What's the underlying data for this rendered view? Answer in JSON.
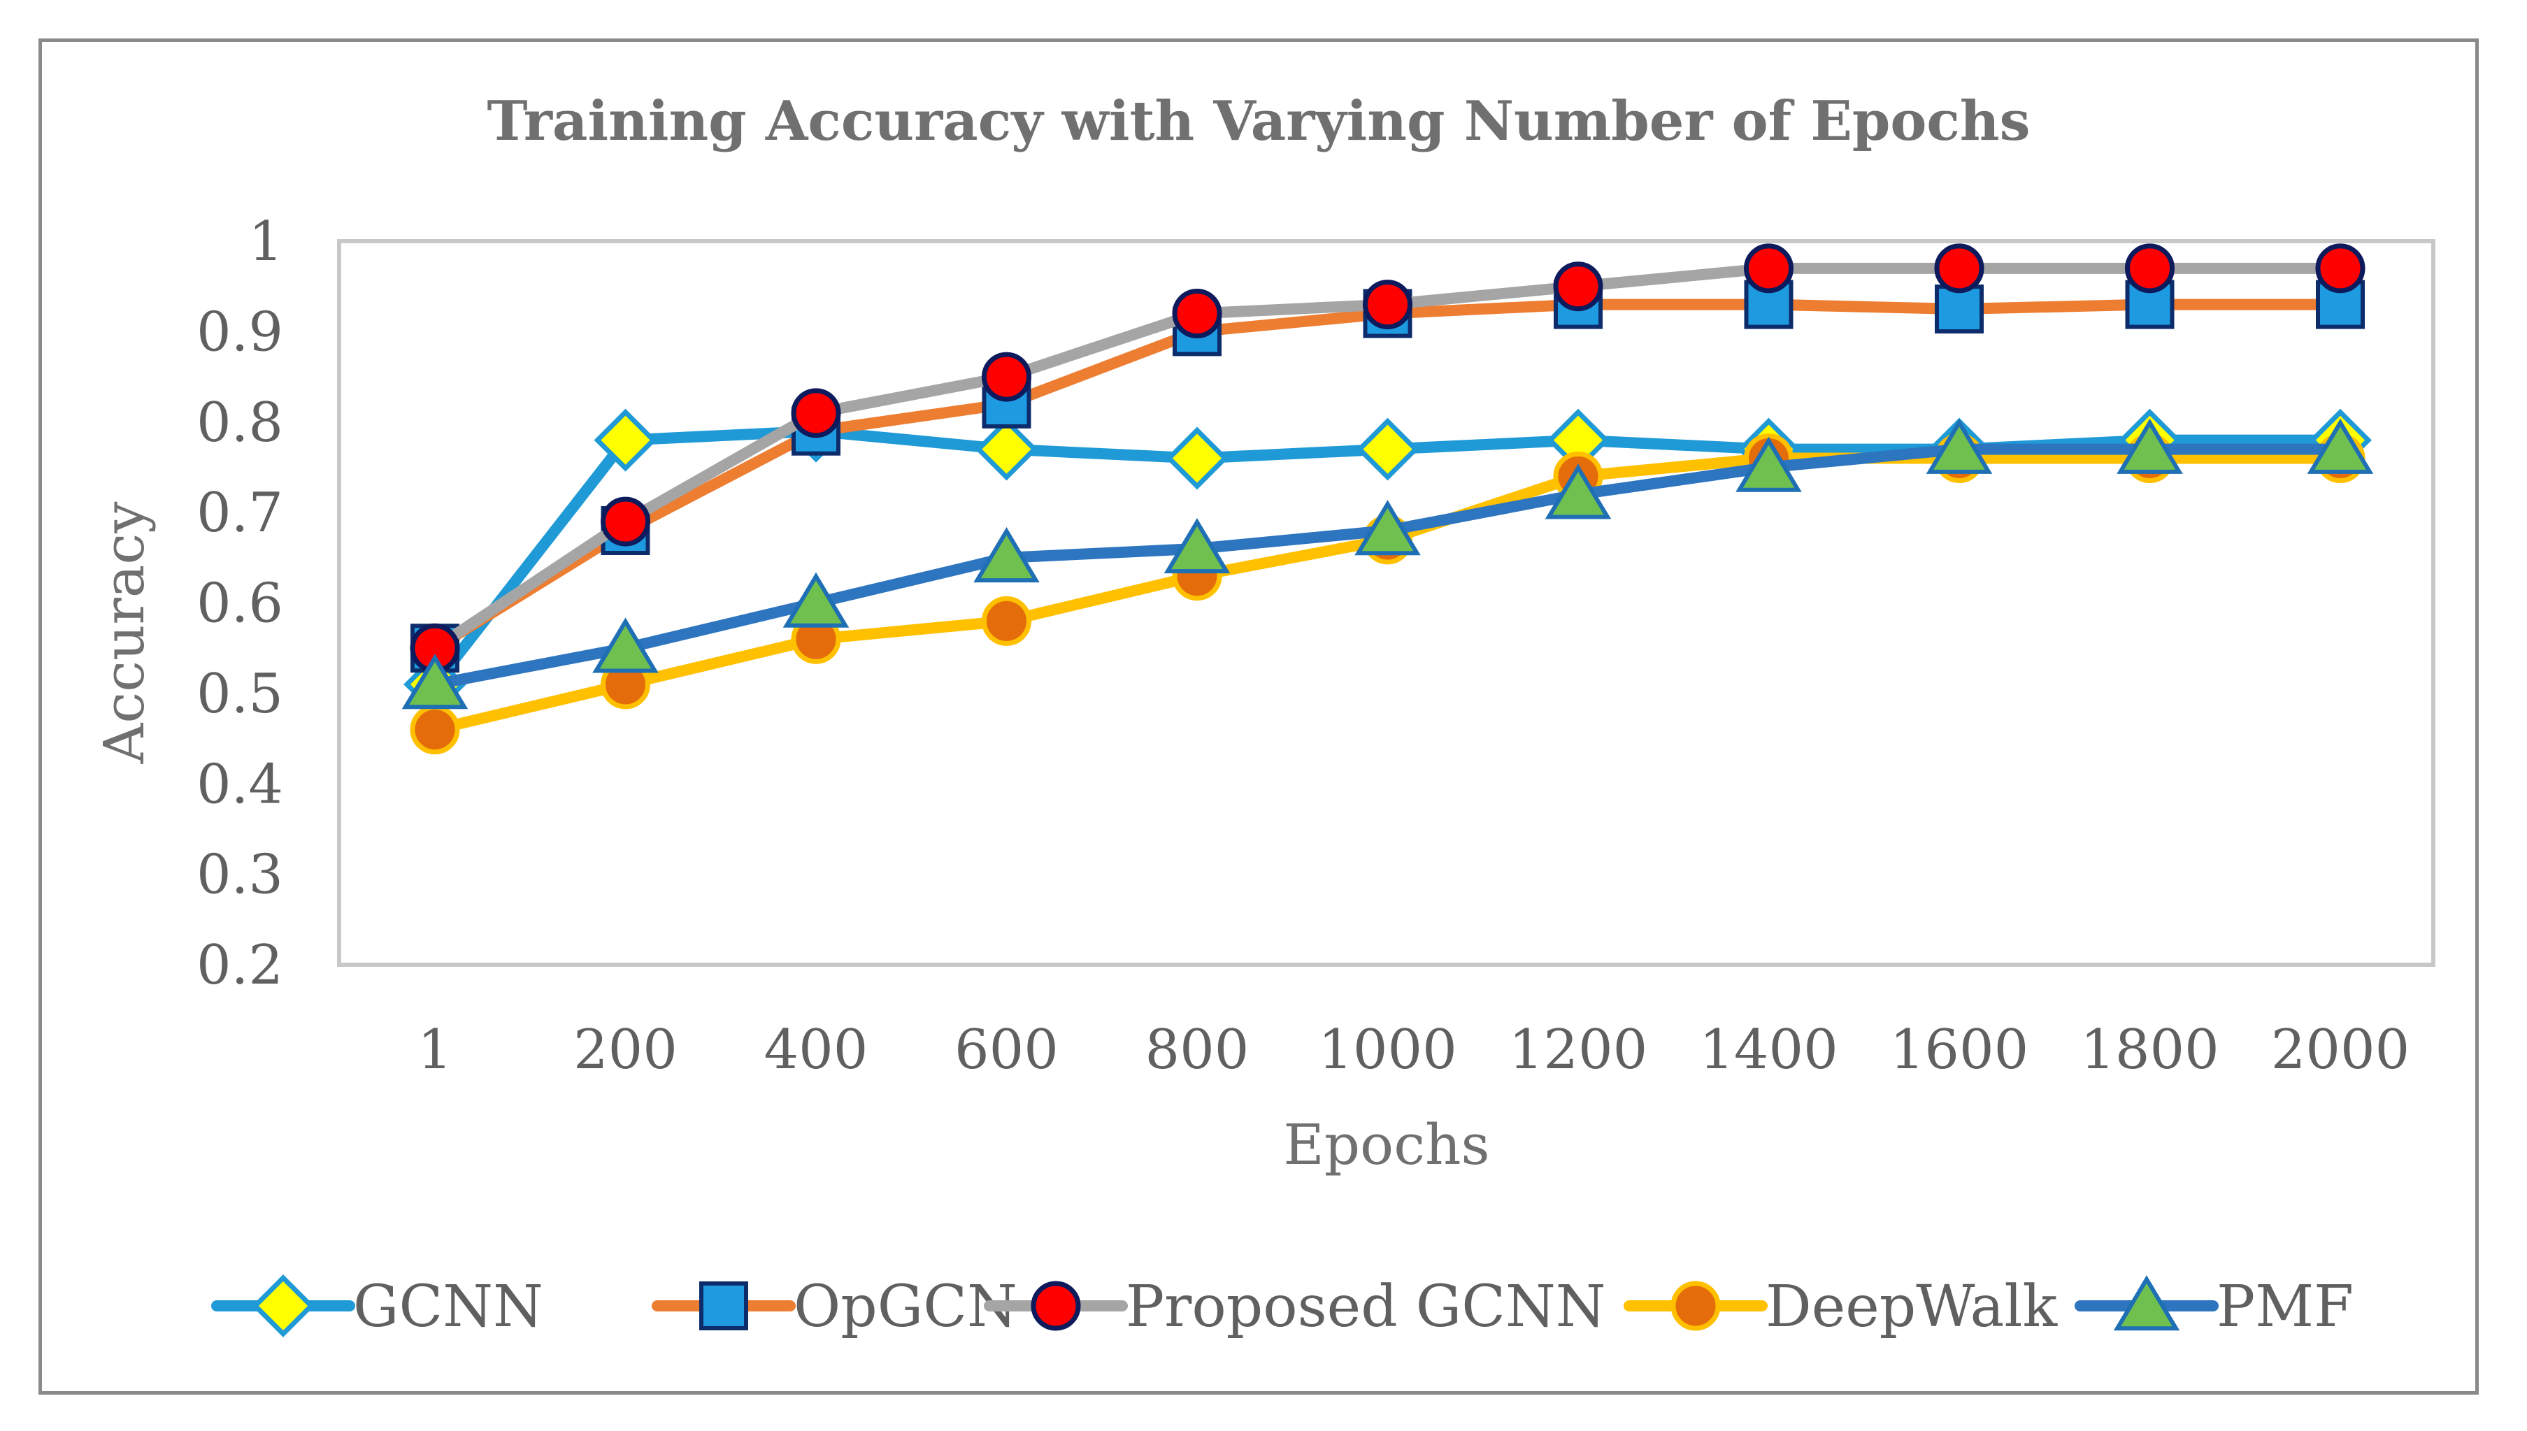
{
  "chart_data": {
    "type": "line",
    "title": "Training Accuracy with Varying Number of Epochs",
    "xlabel": "Epochs",
    "ylabel": "Accuracy",
    "ylim": [
      0.2,
      1.0
    ],
    "yticks": [
      "0.2",
      "0.3",
      "0.4",
      "0.5",
      "0.6",
      "0.7",
      "0.8",
      "0.9",
      "1"
    ],
    "categories": [
      "1",
      "200",
      "400",
      "600",
      "800",
      "1000",
      "1200",
      "1400",
      "1600",
      "1800",
      "2000"
    ],
    "legend_position": "bottom",
    "series": [
      {
        "name": "GCNN",
        "line_color": "#1f9ad6",
        "marker": "diamond",
        "marker_fill": "#ffff00",
        "marker_stroke": "#1f9ad6",
        "values": [
          0.51,
          0.78,
          0.79,
          0.77,
          0.76,
          0.77,
          0.78,
          0.77,
          0.77,
          0.78,
          0.78
        ]
      },
      {
        "name": "OpGCN",
        "line_color": "#ed7d31",
        "marker": "square",
        "marker_fill": "#1e9be0",
        "marker_stroke": "#0d2c6b",
        "values": [
          0.55,
          0.68,
          0.79,
          0.82,
          0.9,
          0.92,
          0.93,
          0.93,
          0.925,
          0.93,
          0.93
        ]
      },
      {
        "name": "Proposed GCNN",
        "line_color": "#a5a5a5",
        "marker": "circle",
        "marker_fill": "#ff0000",
        "marker_stroke": "#0d1a5c",
        "values": [
          0.55,
          0.69,
          0.81,
          0.85,
          0.92,
          0.93,
          0.95,
          0.97,
          0.97,
          0.97,
          0.97
        ]
      },
      {
        "name": "DeepWalk",
        "line_color": "#ffc000",
        "marker": "circle",
        "marker_fill": "#e46c0a",
        "marker_stroke": "#ffc000",
        "values": [
          0.46,
          0.51,
          0.56,
          0.58,
          0.63,
          0.67,
          0.74,
          0.76,
          0.76,
          0.76,
          0.76
        ]
      },
      {
        "name": "PMF",
        "line_color": "#2e75c0",
        "marker": "triangle",
        "marker_fill": "#70c050",
        "marker_stroke": "#1f6fb5",
        "values": [
          0.51,
          0.55,
          0.6,
          0.65,
          0.66,
          0.68,
          0.72,
          0.75,
          0.77,
          0.77,
          0.77
        ]
      }
    ]
  }
}
